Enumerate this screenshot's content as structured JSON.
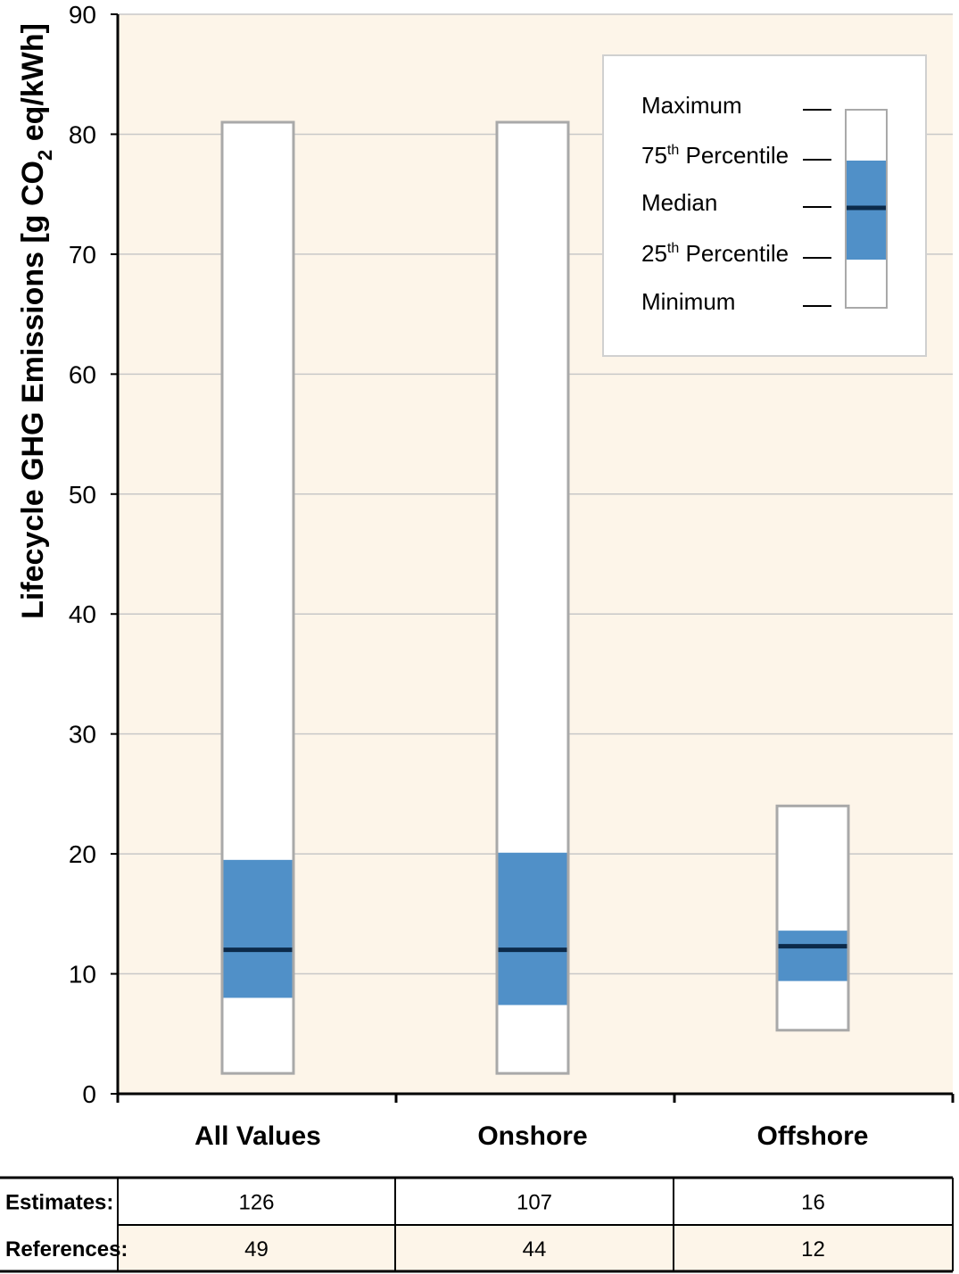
{
  "chart_data": {
    "type": "boxplot",
    "ylabel_parts": [
      "Lifecycle GHG Emissions [g CO",
      "2",
      " eq/kWh]"
    ],
    "ylim": [
      0,
      90
    ],
    "yticks": [
      0,
      10,
      20,
      30,
      40,
      50,
      60,
      70,
      80,
      90
    ],
    "grid": true,
    "categories": [
      "All Values",
      "Onshore",
      "Offshore"
    ],
    "boxes": [
      {
        "category": "All Values",
        "min": 1.7,
        "q1": 8.0,
        "median": 12.0,
        "q3": 19.5,
        "max": 81.0
      },
      {
        "category": "Onshore",
        "min": 1.7,
        "q1": 7.4,
        "median": 12.0,
        "q3": 20.1,
        "max": 81.0
      },
      {
        "category": "Offshore",
        "min": 5.3,
        "q1": 9.4,
        "median": 12.3,
        "q3": 13.6,
        "max": 24.0
      }
    ],
    "legend": {
      "position": "top-right",
      "items": [
        {
          "key": "maximum",
          "label": "Maximum"
        },
        {
          "key": "q3",
          "label_pre": "75",
          "label_sup": "th",
          "label_post": " Percentile"
        },
        {
          "key": "median",
          "label": "Median"
        },
        {
          "key": "q1",
          "label_pre": "25",
          "label_sup": "th",
          "label_post": " Percentile"
        },
        {
          "key": "minimum",
          "label": "Minimum"
        }
      ]
    },
    "table": {
      "rows": [
        {
          "label": "Estimates:",
          "values": [
            "126",
            "107",
            "16"
          ]
        },
        {
          "label": "References:",
          "values": [
            "49",
            "44",
            "12"
          ]
        }
      ]
    },
    "colors": {
      "plot_background": "#fdf5e9",
      "box_fill": "#ffffff",
      "box_border": "#a9a9a9",
      "iqr_fill": "#5090c8",
      "median": "#0b2a4a",
      "grid": "#c8c8c8",
      "axis": "#000000",
      "table_row_alt": "#fdf5e9"
    }
  }
}
